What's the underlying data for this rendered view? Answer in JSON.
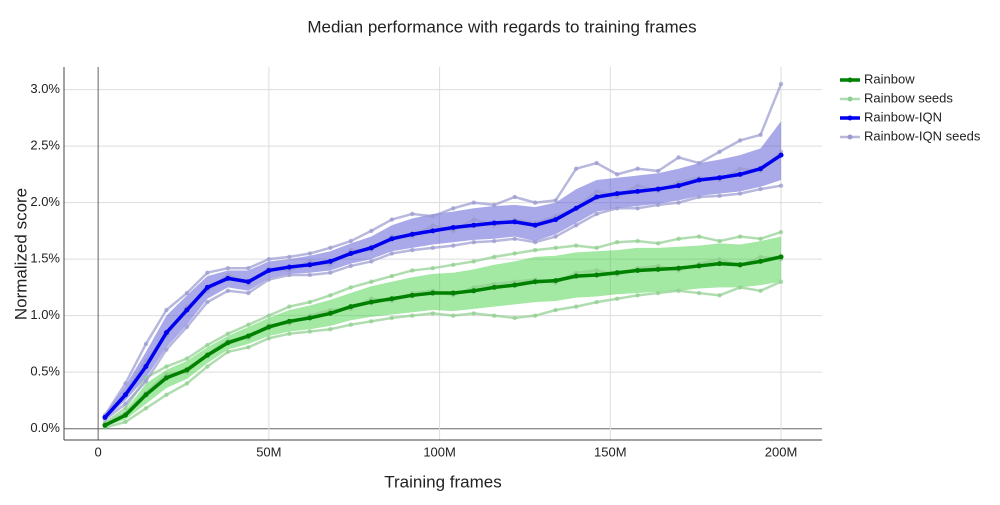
{
  "chart_data": {
    "type": "line",
    "title": "Median performance with regards to training frames",
    "x_label": "Training frames",
    "y_label": "Normalized score",
    "x": [
      2,
      8,
      14,
      20,
      26,
      32,
      38,
      44,
      50,
      56,
      62,
      68,
      74,
      80,
      86,
      92,
      98,
      104,
      110,
      116,
      122,
      128,
      134,
      140,
      146,
      152,
      158,
      164,
      170,
      176,
      182,
      188,
      194,
      200
    ],
    "xlim": [
      -10,
      212
    ],
    "ylim": [
      -0.1,
      3.2
    ],
    "xticks": [
      0,
      {
        "value": 50,
        "label": "50M"
      },
      {
        "value": 100,
        "label": "100M"
      },
      {
        "value": 150,
        "label": "150M"
      },
      {
        "value": 200,
        "label": "200M"
      }
    ],
    "yticks": [
      {
        "value": 0,
        "label": "0.0%"
      },
      {
        "value": 0.5,
        "label": "0.5%"
      },
      {
        "value": 1,
        "label": "1.0%"
      },
      {
        "value": 1.5,
        "label": "1.5%"
      },
      {
        "value": 2,
        "label": "2.0%"
      },
      {
        "value": 2.5,
        "label": "2.5%"
      },
      {
        "value": 3,
        "label": "3.0%"
      }
    ],
    "grid": true,
    "legend": "right",
    "series": [
      {
        "name": "Rainbow",
        "color": "#008000",
        "band_color": "#32cd32",
        "values": [
          0.03,
          0.12,
          0.3,
          0.45,
          0.52,
          0.65,
          0.76,
          0.82,
          0.9,
          0.95,
          0.98,
          1.02,
          1.08,
          1.12,
          1.15,
          1.18,
          1.2,
          1.2,
          1.22,
          1.25,
          1.27,
          1.3,
          1.31,
          1.35,
          1.36,
          1.38,
          1.4,
          1.41,
          1.42,
          1.44,
          1.46,
          1.45,
          1.48,
          1.52
        ],
        "band": {
          "lower": [
            0.02,
            0.08,
            0.22,
            0.36,
            0.44,
            0.58,
            0.7,
            0.75,
            0.82,
            0.86,
            0.88,
            0.91,
            0.96,
            0.99,
            1.01,
            1.03,
            1.05,
            1.04,
            1.06,
            1.08,
            1.1,
            1.12,
            1.13,
            1.16,
            1.17,
            1.19,
            1.2,
            1.21,
            1.22,
            1.24,
            1.25,
            1.25,
            1.27,
            1.3
          ],
          "upper": [
            0.05,
            0.16,
            0.4,
            0.52,
            0.6,
            0.72,
            0.82,
            0.9,
            0.98,
            1.05,
            1.09,
            1.14,
            1.2,
            1.26,
            1.3,
            1.34,
            1.37,
            1.38,
            1.41,
            1.45,
            1.48,
            1.52,
            1.53,
            1.56,
            1.57,
            1.58,
            1.6,
            1.6,
            1.61,
            1.62,
            1.64,
            1.63,
            1.66,
            1.7
          ]
        }
      },
      {
        "name": "Rainbow seeds",
        "color": "#8fce8f",
        "runs": [
          [
            0.05,
            0.18,
            0.45,
            0.55,
            0.62,
            0.74,
            0.84,
            0.92,
            1.0,
            1.08,
            1.12,
            1.18,
            1.25,
            1.3,
            1.35,
            1.4,
            1.42,
            1.45,
            1.48,
            1.52,
            1.55,
            1.58,
            1.6,
            1.62,
            1.6,
            1.65,
            1.66,
            1.64,
            1.68,
            1.7,
            1.66,
            1.7,
            1.68,
            1.74
          ],
          [
            0.01,
            0.06,
            0.18,
            0.3,
            0.4,
            0.55,
            0.68,
            0.72,
            0.8,
            0.84,
            0.86,
            0.88,
            0.92,
            0.95,
            0.98,
            1.0,
            1.02,
            1.0,
            1.02,
            1.0,
            0.98,
            1.0,
            1.05,
            1.08,
            1.12,
            1.15,
            1.18,
            1.2,
            1.22,
            1.2,
            1.18,
            1.25,
            1.22,
            1.3
          ],
          [
            0.03,
            0.14,
            0.32,
            0.48,
            0.5,
            0.66,
            0.78,
            0.8,
            0.92,
            0.93,
            1.0,
            1.05,
            1.06,
            1.15,
            1.13,
            1.2,
            1.22,
            1.18,
            1.25,
            1.28,
            1.3,
            1.32,
            1.29,
            1.38,
            1.4,
            1.36,
            1.42,
            1.44,
            1.4,
            1.46,
            1.5,
            1.44,
            1.52,
            1.5
          ]
        ]
      },
      {
        "name": "Rainbow-IQN",
        "color": "#0000ee",
        "band_color": "#4040d0",
        "values": [
          0.1,
          0.3,
          0.55,
          0.85,
          1.05,
          1.25,
          1.33,
          1.3,
          1.4,
          1.43,
          1.45,
          1.48,
          1.55,
          1.6,
          1.68,
          1.72,
          1.75,
          1.78,
          1.8,
          1.82,
          1.83,
          1.8,
          1.85,
          1.95,
          2.05,
          2.08,
          2.1,
          2.12,
          2.15,
          2.2,
          2.22,
          2.25,
          2.3,
          2.42
        ],
        "band": {
          "lower": [
            0.08,
            0.25,
            0.45,
            0.72,
            0.92,
            1.15,
            1.25,
            1.22,
            1.33,
            1.37,
            1.38,
            1.4,
            1.46,
            1.5,
            1.57,
            1.6,
            1.63,
            1.65,
            1.67,
            1.68,
            1.7,
            1.66,
            1.72,
            1.82,
            1.92,
            1.95,
            1.97,
            1.99,
            2.02,
            2.06,
            2.08,
            2.1,
            2.14,
            2.2
          ],
          "upper": [
            0.13,
            0.38,
            0.68,
            1.0,
            1.18,
            1.35,
            1.4,
            1.4,
            1.48,
            1.5,
            1.53,
            1.57,
            1.64,
            1.7,
            1.8,
            1.86,
            1.9,
            1.92,
            1.95,
            1.97,
            1.98,
            1.96,
            2.0,
            2.12,
            2.2,
            2.22,
            2.24,
            2.26,
            2.3,
            2.35,
            2.38,
            2.42,
            2.48,
            2.72
          ]
        }
      },
      {
        "name": "Rainbow-IQN seeds",
        "color": "#9a9ad0",
        "runs": [
          [
            0.12,
            0.4,
            0.75,
            1.05,
            1.2,
            1.38,
            1.42,
            1.42,
            1.5,
            1.52,
            1.55,
            1.6,
            1.66,
            1.75,
            1.85,
            1.9,
            1.88,
            1.95,
            2.0,
            1.98,
            2.05,
            2.0,
            2.02,
            2.3,
            2.35,
            2.25,
            2.3,
            2.28,
            2.4,
            2.35,
            2.45,
            2.55,
            2.6,
            3.05
          ],
          [
            0.08,
            0.22,
            0.42,
            0.7,
            0.9,
            1.12,
            1.22,
            1.2,
            1.32,
            1.36,
            1.36,
            1.38,
            1.44,
            1.48,
            1.55,
            1.58,
            1.6,
            1.62,
            1.65,
            1.66,
            1.68,
            1.65,
            1.7,
            1.8,
            1.9,
            1.95,
            1.95,
            1.98,
            2.0,
            2.05,
            2.06,
            2.08,
            2.12,
            2.15
          ],
          [
            0.1,
            0.32,
            0.6,
            0.82,
            1.08,
            1.22,
            1.36,
            1.28,
            1.42,
            1.4,
            1.48,
            1.45,
            1.58,
            1.58,
            1.7,
            1.7,
            1.8,
            1.75,
            1.85,
            1.8,
            1.85,
            1.82,
            1.88,
            1.95,
            2.1,
            2.05,
            2.15,
            2.1,
            2.18,
            2.22,
            2.2,
            2.3,
            2.28,
            2.45
          ]
        ]
      }
    ]
  }
}
